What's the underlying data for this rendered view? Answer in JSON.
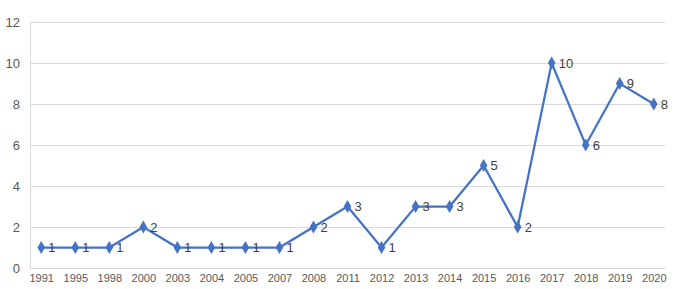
{
  "chart_data": {
    "type": "line",
    "categories": [
      "1991",
      "1995",
      "1998",
      "2000",
      "2003",
      "2004",
      "2005",
      "2007",
      "2008",
      "2011",
      "2012",
      "2013",
      "2014",
      "2015",
      "2016",
      "2017",
      "2018",
      "2019",
      "2020"
    ],
    "values": [
      1,
      1,
      1,
      2,
      1,
      1,
      1,
      1,
      2,
      3,
      1,
      3,
      3,
      5,
      2,
      10,
      6,
      9,
      8
    ],
    "color": "#4472c4",
    "marker": "diamond",
    "line_style": "solid",
    "ylim": [
      0,
      12
    ],
    "yticks": [
      0,
      2,
      4,
      6,
      8,
      10,
      12
    ],
    "grid": true,
    "data_labels": true
  }
}
